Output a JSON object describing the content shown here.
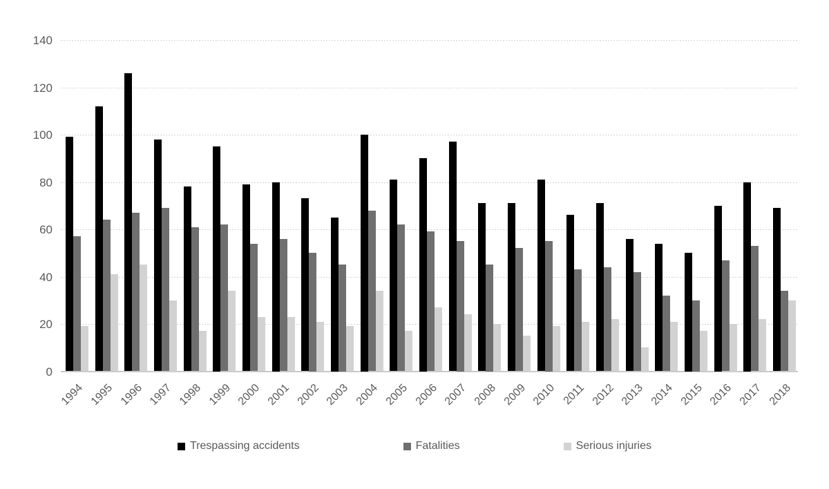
{
  "chart_data": {
    "type": "bar",
    "title": "",
    "xlabel": "",
    "ylabel": "",
    "categories": [
      "1994",
      "1995",
      "1996",
      "1997",
      "1998",
      "1999",
      "2000",
      "2001",
      "2002",
      "2003",
      "2004",
      "2005",
      "2006",
      "2007",
      "2008",
      "2009",
      "2010",
      "2011",
      "2012",
      "2013",
      "2014",
      "2015",
      "2016",
      "2017",
      "2018"
    ],
    "series": [
      {
        "name": "Trespassing accidents",
        "color": "#000000",
        "values": [
          99,
          112,
          126,
          98,
          78,
          95,
          79,
          80,
          73,
          65,
          100,
          81,
          90,
          97,
          71,
          71,
          81,
          66,
          71,
          56,
          54,
          50,
          70,
          80,
          69
        ]
      },
      {
        "name": "Fatalities",
        "color": "#6f6f6f",
        "values": [
          57,
          64,
          67,
          69,
          61,
          62,
          54,
          56,
          50,
          45,
          68,
          62,
          59,
          55,
          45,
          52,
          55,
          43,
          44,
          42,
          32,
          30,
          47,
          53,
          34
        ]
      },
      {
        "name": "Serious injuries",
        "color": "#d2d2d2",
        "values": [
          19,
          41,
          45,
          30,
          17,
          34,
          23,
          23,
          21,
          19,
          34,
          17,
          27,
          24,
          20,
          15,
          19,
          21,
          22,
          10,
          21,
          17,
          20,
          22,
          30
        ]
      }
    ],
    "ylim": [
      0,
      140
    ],
    "y_ticks": [
      0,
      20,
      40,
      60,
      80,
      100,
      120,
      140
    ],
    "grid": "horizontal-dotted",
    "legend_position": "bottom",
    "axis_text_color": "#595959",
    "gridline_color": "#d2d2d2"
  }
}
